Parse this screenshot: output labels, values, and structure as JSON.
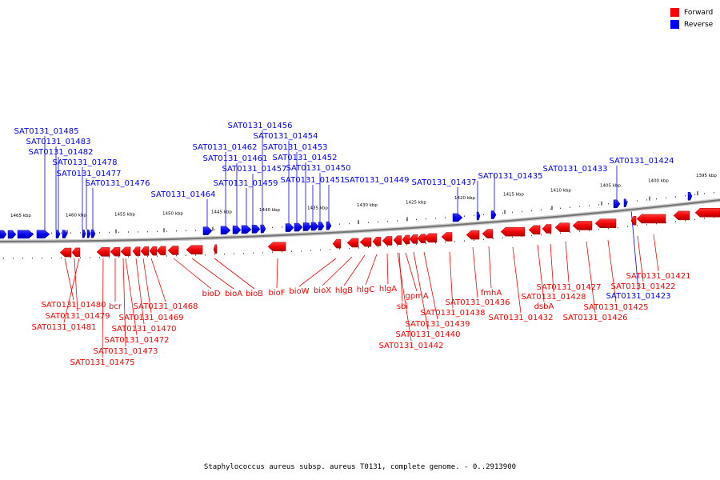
{
  "legend": {
    "items": [
      {
        "label": "Forward",
        "color": "#ff0000"
      },
      {
        "label": "Reverse",
        "color": "#0000ff"
      }
    ]
  },
  "caption": "Staphylococcus aureus subsp. aureus T0131, complete genome. - 0..2913900",
  "ruler": {
    "ticks_kbp": [
      {
        "label": "1465 kbp"
      },
      {
        "label": "1460 kbp"
      },
      {
        "label": "1455 kbp"
      },
      {
        "label": "1450 kbp"
      },
      {
        "label": "1445 kbp"
      },
      {
        "label": "1440 kbp"
      },
      {
        "label": "1435 kbp"
      },
      {
        "label": "1430 kbp"
      },
      {
        "label": "1425 kbp"
      },
      {
        "label": "1420 kbp"
      },
      {
        "label": "1415 kbp"
      },
      {
        "label": "1410 kbp"
      },
      {
        "label": "1405 kbp"
      },
      {
        "label": "1400 kbp"
      },
      {
        "label": "1395 kbp"
      }
    ]
  },
  "reverse_labels": [
    "SAT0131_01485",
    "SAT0131_01483",
    "SAT0131_01482",
    "SAT0131_01478",
    "SAT0131_01477",
    "SAT0131_01476",
    "SAT0131_01464",
    "SAT0131_01462",
    "SAT0131_01461",
    "SAT0131_01459",
    "SAT0131_01457",
    "SAT0131_01456",
    "SAT0131_01454",
    "SAT0131_01453",
    "SAT0131_01452",
    "SAT0131_01451",
    "SAT0131_01450",
    "SAT0131_01449",
    "SAT0131_01437",
    "SAT0131_01435",
    "SAT0131_01433",
    "SAT0131_01424",
    "SAT0131_01423"
  ],
  "forward_labels": [
    "SAT0131_01480",
    "SAT0131_01479",
    "SAT0131_01481",
    "bcr",
    "SAT0131_01468",
    "SAT0131_01469",
    "SAT0131_01470",
    "SAT0131_01472",
    "SAT0131_01473",
    "SAT0131_01475",
    "bioD",
    "bioA",
    "bioB",
    "bioF",
    "bioW",
    "bioX",
    "hlgB",
    "hlgC",
    "hlgA",
    "sbi",
    "gpmA",
    "SAT0131_01438",
    "SAT0131_01439",
    "SAT0131_01440",
    "SAT0131_01442",
    "fmhA",
    "SAT0131_01436",
    "SAT0131_01432",
    "dsbA",
    "SAT0131_01428",
    "SAT0131_01427",
    "SAT0131_01426",
    "SAT0131_01425",
    "SAT0131_01422",
    "SAT0131_01421"
  ],
  "colors": {
    "forward": "#ff0000",
    "reverse": "#0000ff",
    "backbone": "#888888"
  }
}
